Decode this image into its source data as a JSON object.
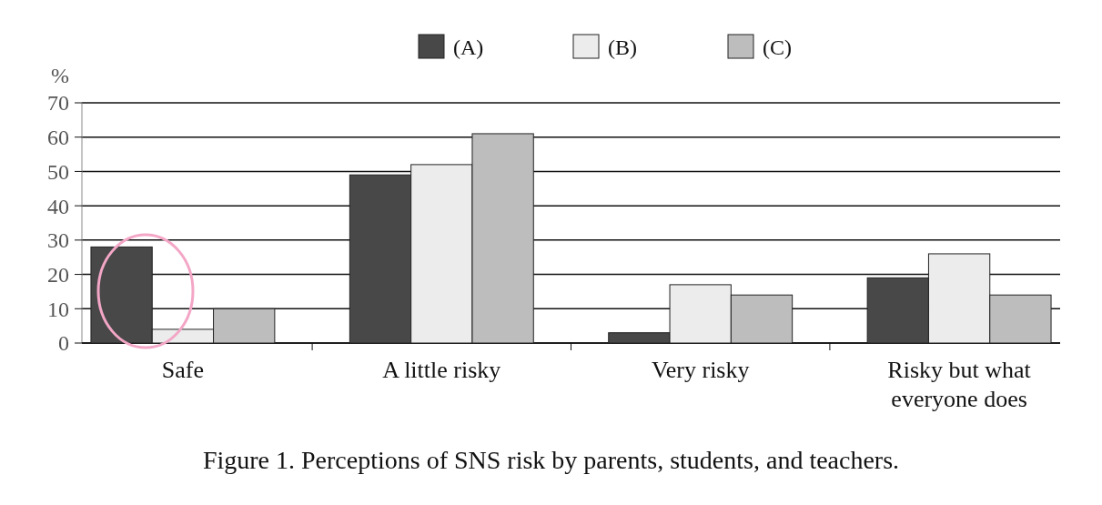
{
  "chart_data": {
    "type": "bar",
    "title": "Figure 1. Perceptions of SNS risk by parents, students, and teachers.",
    "ylabel": "%",
    "categories": [
      "Safe",
      "A little risky",
      "Very risky",
      "Risky but what everyone does"
    ],
    "series": [
      {
        "name": "(A)",
        "color": "#484848",
        "values": [
          28,
          49,
          3,
          19
        ]
      },
      {
        "name": "(B)",
        "color": "#ececec",
        "values": [
          4,
          52,
          17,
          26
        ]
      },
      {
        "name": "(C)",
        "color": "#bdbdbd",
        "values": [
          10,
          61,
          14,
          14
        ]
      }
    ],
    "ylim": [
      0,
      70
    ],
    "yticks": [
      0,
      10,
      20,
      30,
      40,
      50,
      60,
      70
    ],
    "grid": "y",
    "legend": "top"
  }
}
